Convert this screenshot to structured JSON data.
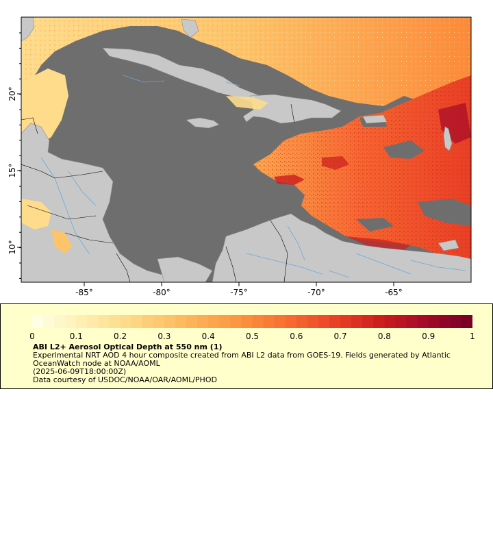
{
  "map": {
    "lon_ticks": [
      "-85°",
      "-80°",
      "-75°",
      "-70°",
      "-65°"
    ],
    "lat_ticks": [
      "20°",
      "15°",
      "10°"
    ],
    "colors": {
      "ocean": "#6e6e6e",
      "land": "#c8c8c8",
      "river": "#6aa8d8",
      "boundary": "#000000",
      "outline": "#8c8c8c"
    }
  },
  "legend": {
    "colorbar_ticks": [
      "0",
      "0.1",
      "0.2",
      "0.3",
      "0.4",
      "0.5",
      "0.6",
      "0.7",
      "0.8",
      "0.9",
      "1"
    ],
    "colorbar_range": [
      0,
      1
    ],
    "colorbar_stops": [
      "#ffffe6",
      "#fff0b4",
      "#fedc8c",
      "#fdc46a",
      "#fca84e",
      "#fb8a3a",
      "#f66530",
      "#e83e25",
      "#cc1c1e",
      "#a50a28",
      "#7a0026"
    ],
    "title": "ABI L2+ Aerosol Optical Depth at 550 nm (1)",
    "line1": "Experimental NRT AOD 4 hour composite created from ABI L2 data from GOES-19. Fields generated by Atlantic",
    "line2": "OceanWatch node at NOAA/AOML",
    "line3": "(2025-06-09T18:00:00Z)",
    "line4": "Data courtesy of USDOC/NOAA/OAR/AOML/PHOD"
  }
}
